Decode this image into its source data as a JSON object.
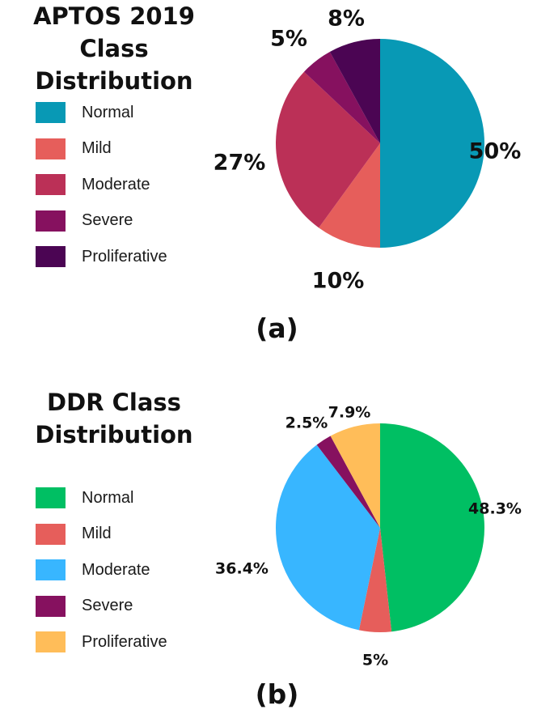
{
  "chart_data": [
    {
      "type": "pie",
      "title": "APTOS 2019 Class\nDistribution",
      "caption": "(a)",
      "legend_position": "left",
      "categories": [
        "Normal",
        "Mild",
        "Moderate",
        "Severe",
        "Proliferative"
      ],
      "values": [
        50,
        10,
        27,
        5,
        8
      ],
      "labels": [
        "50%",
        "10%",
        "27%",
        "5%",
        "8%"
      ],
      "colors": [
        "#0899B5",
        "#E65E5B",
        "#BB3057",
        "#86115F",
        "#4B0553"
      ]
    },
    {
      "type": "pie",
      "title": "DDR Class\nDistribution",
      "caption": "(b)",
      "legend_position": "left",
      "categories": [
        "Normal",
        "Mild",
        "Moderate",
        "Severe",
        "Proliferative"
      ],
      "values": [
        48.3,
        5,
        36.4,
        2.5,
        7.9
      ],
      "labels": [
        "48.3%",
        "5%",
        "36.4%",
        "2.5%",
        "7.9%"
      ],
      "colors": [
        "#00BF63",
        "#E65E5B",
        "#38B6FF",
        "#86115F",
        "#FFBD59"
      ]
    }
  ]
}
